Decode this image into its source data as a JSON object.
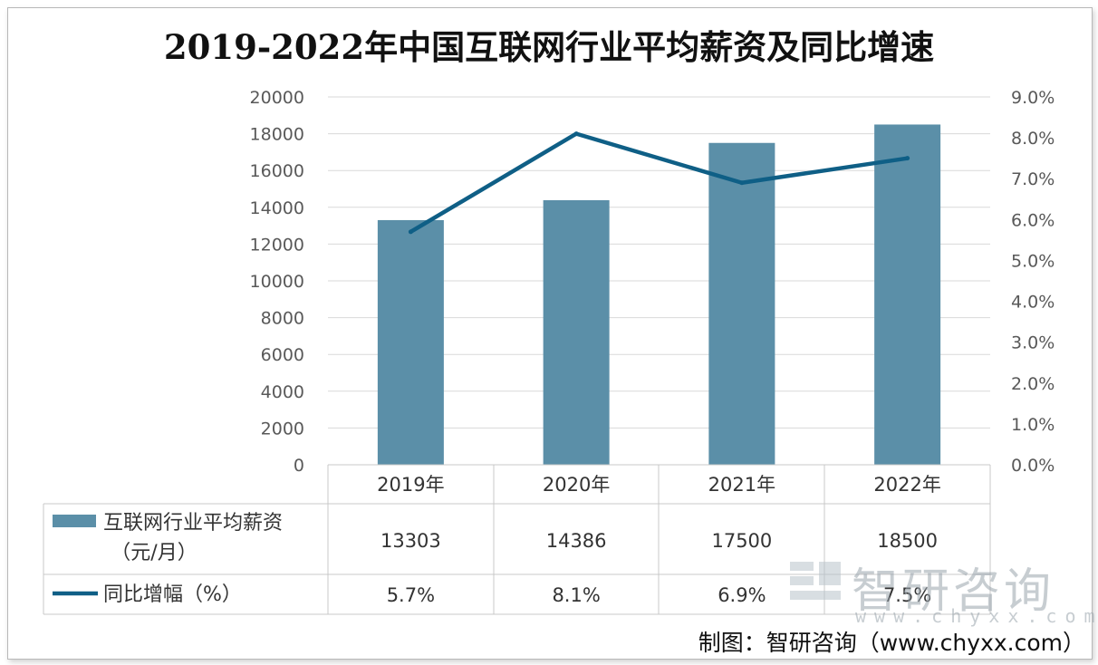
{
  "chart_data": {
    "type": "bar",
    "title": "2019-2022年中国互联网行业平均薪资及同比增速",
    "categories": [
      "2019年",
      "2020年",
      "2021年",
      "2022年"
    ],
    "series": [
      {
        "name": "互联网行业平均薪资（元/月）",
        "name_line1": "互联网行业平均薪资",
        "name_line2": "（元/月）",
        "type": "bar",
        "axis": "left",
        "color": "#5b8fa8",
        "values": [
          13303,
          14386,
          17500,
          18500
        ],
        "value_labels": [
          "13303",
          "14386",
          "17500",
          "18500"
        ]
      },
      {
        "name": "同比增幅（%）",
        "type": "line",
        "axis": "right",
        "color": "#0f5f86",
        "values": [
          5.7,
          8.1,
          6.9,
          7.5
        ],
        "value_labels": [
          "5.7%",
          "8.1%",
          "6.9%",
          "7.5%"
        ]
      }
    ],
    "y_left": {
      "min": 0,
      "max": 20000,
      "step": 2000,
      "ticks": [
        "0",
        "2000",
        "4000",
        "6000",
        "8000",
        "10000",
        "12000",
        "14000",
        "16000",
        "18000",
        "20000"
      ]
    },
    "y_right": {
      "min": 0,
      "max": 9,
      "step": 1,
      "ticks": [
        "0.0%",
        "1.0%",
        "2.0%",
        "3.0%",
        "4.0%",
        "5.0%",
        "6.0%",
        "7.0%",
        "8.0%",
        "9.0%"
      ]
    },
    "grid": true,
    "legend": "data-table"
  },
  "watermark": {
    "brand": "智研咨询",
    "url": "www.chyxx.com"
  },
  "source_text": "制图：智研咨询（www.chyxx.com）",
  "colors": {
    "bar": "#5b8fa8",
    "line": "#0f5f86",
    "grid": "#d9d9d9",
    "table_border": "#c8c8c8"
  }
}
